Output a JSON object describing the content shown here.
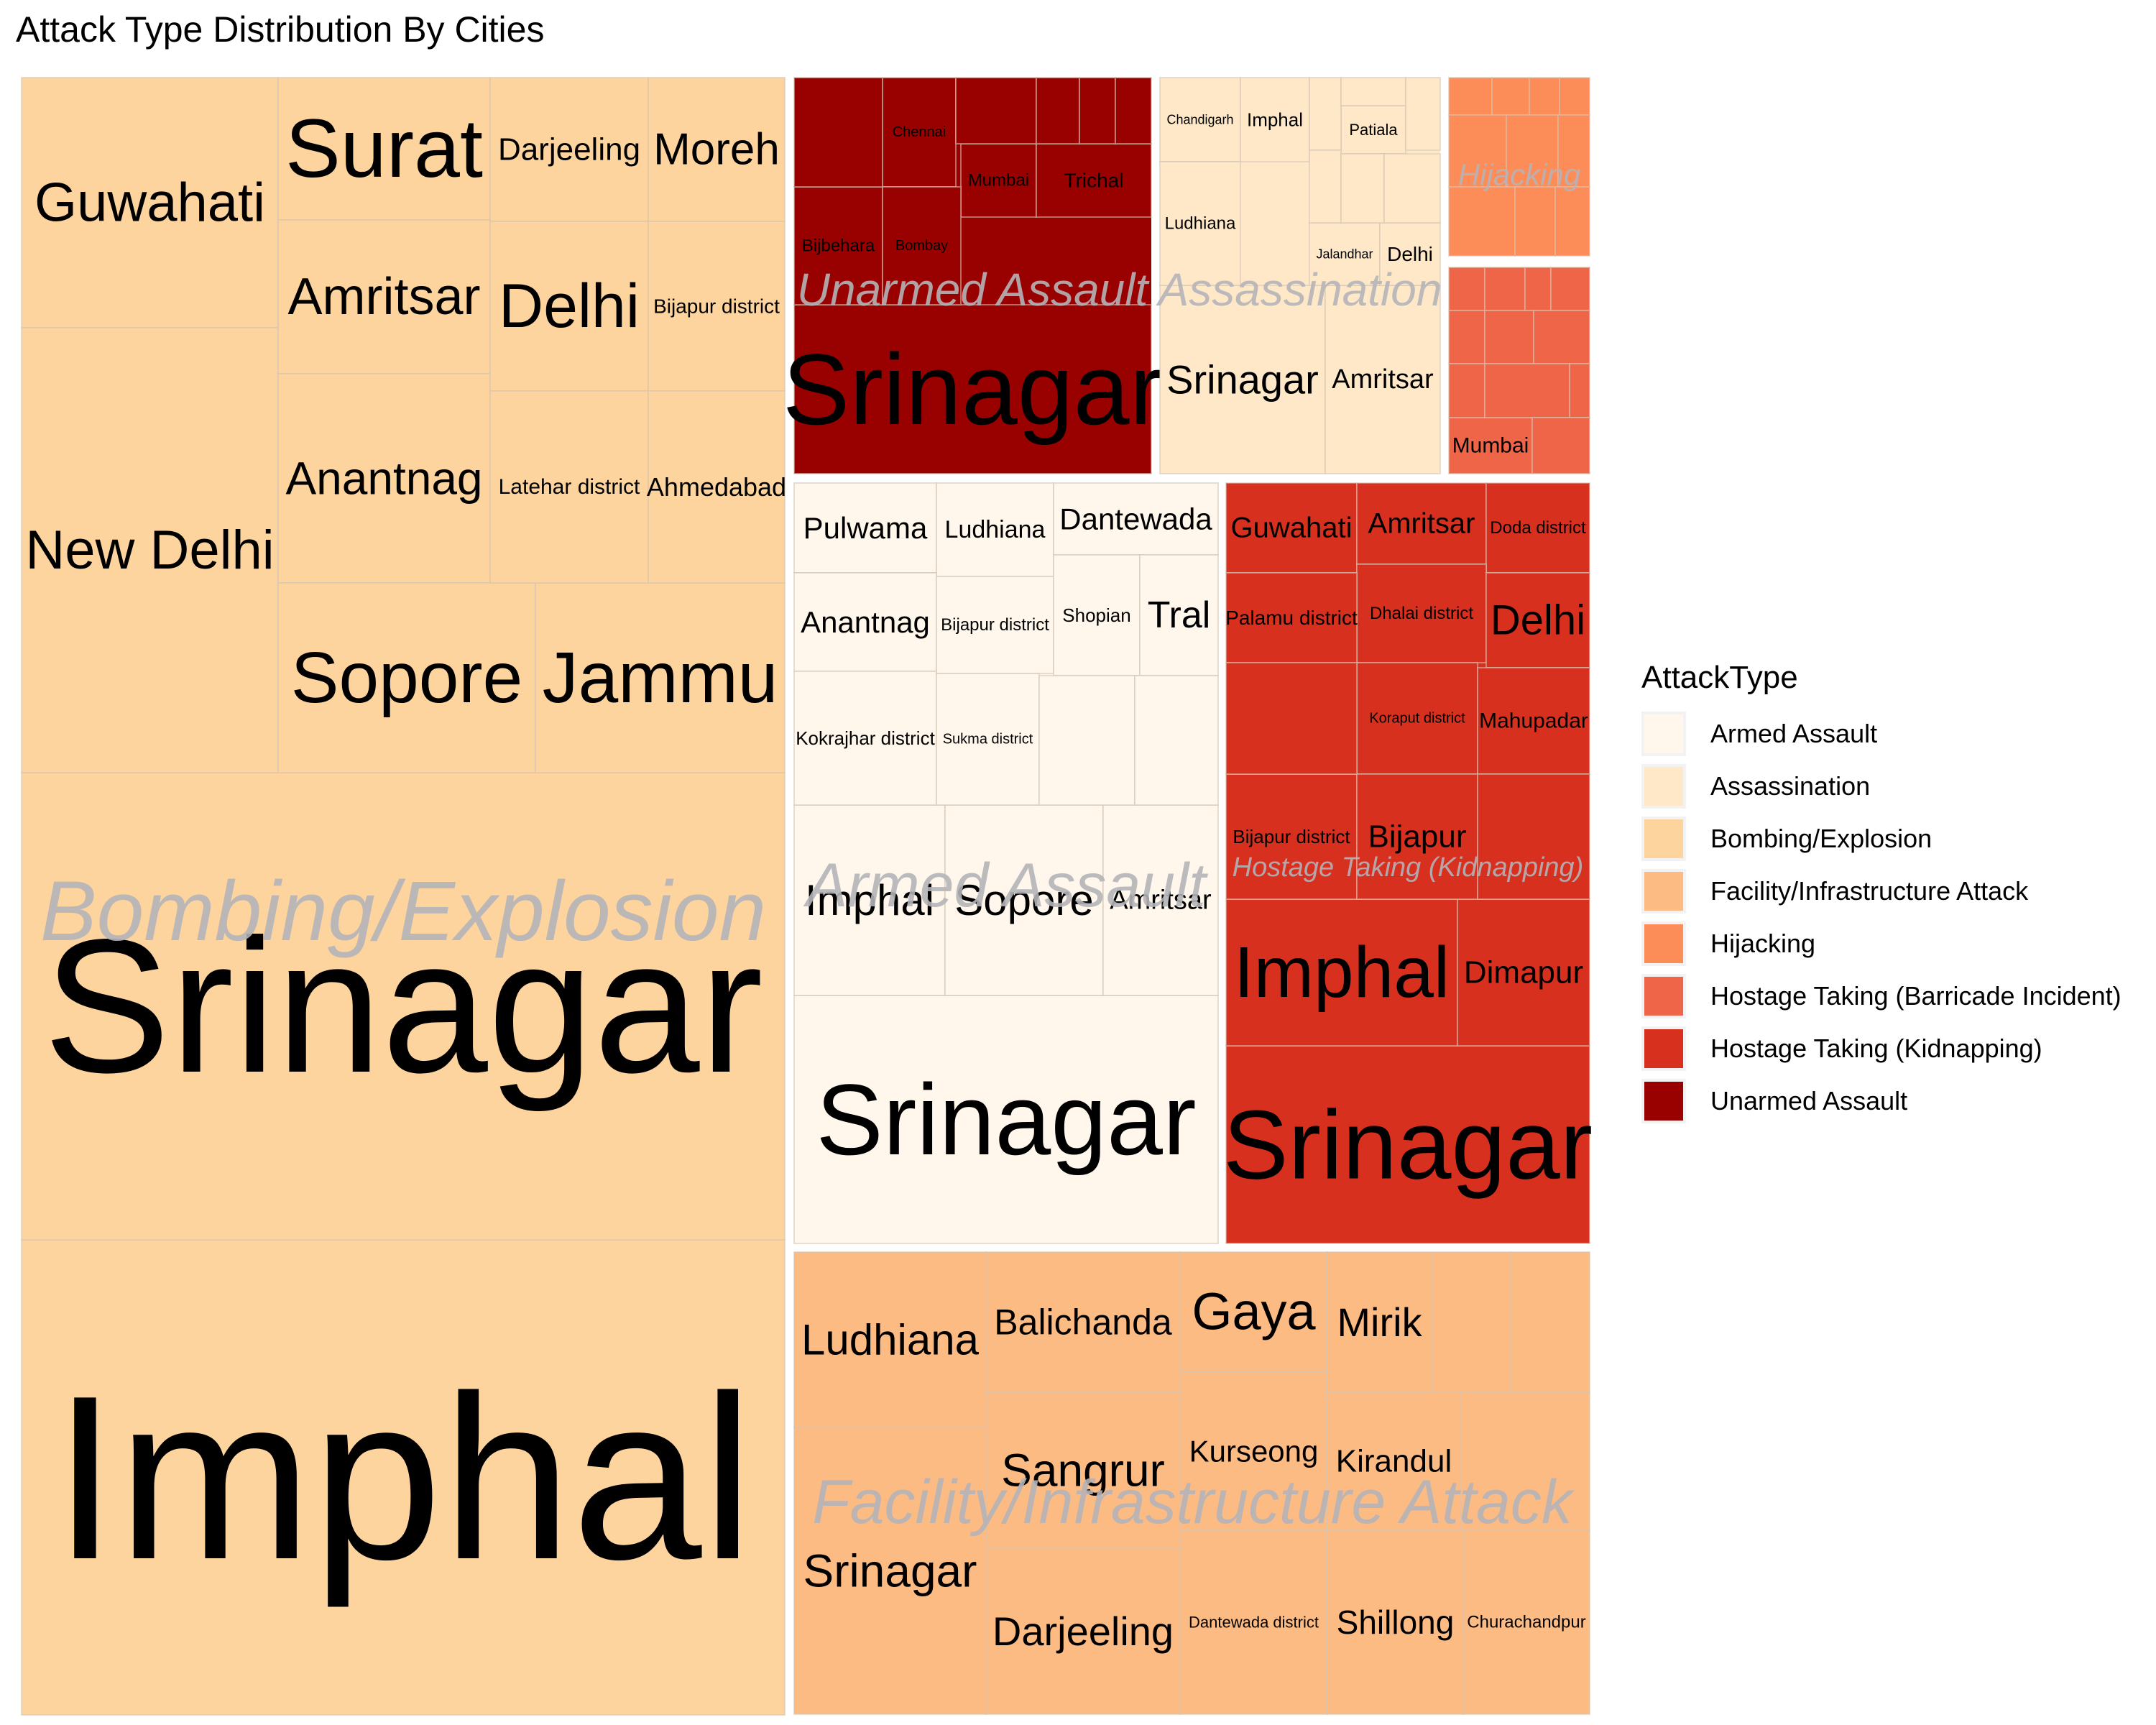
{
  "chart_data": {
    "type": "treemap",
    "title": "Attack Type Distribution By Cities",
    "legend": {
      "title": "AttackType",
      "position": "right",
      "items": [
        {
          "label": "Armed Assault",
          "color": "#fff7ec"
        },
        {
          "label": "Assassination",
          "color": "#fee8c8"
        },
        {
          "label": "Bombing/Explosion",
          "color": "#fdd49e"
        },
        {
          "label": "Facility/Infrastructure Attack",
          "color": "#fdbb84"
        },
        {
          "label": "Hijacking",
          "color": "#fc8d59"
        },
        {
          "label": "Hostage Taking (Barricade Incident)",
          "color": "#ef6548"
        },
        {
          "label": "Hostage Taking (Kidnapping)",
          "color": "#d7301f"
        },
        {
          "label": "Unarmed Assault",
          "color": "#990000"
        }
      ]
    },
    "groups": [
      {
        "name": "Bombing/Explosion",
        "label": "Bombing/Explosion",
        "color": "#fdd49e",
        "cities": [
          "Imphal",
          "Srinagar",
          "Guwahati",
          "New Delhi",
          "Surat",
          "Amritsar",
          "Anantnag",
          "Sopore",
          "Jammu",
          "Darjeeling",
          "Moreh",
          "Delhi",
          "Bijapur district",
          "Latehar district",
          "Ahmedabad"
        ]
      },
      {
        "name": "Armed Assault",
        "label": "Armed Assault",
        "color": "#fff7ec",
        "cities": [
          "Srinagar",
          "Imphal",
          "Sopore",
          "Amritsar",
          "Pulwama",
          "Ludhiana",
          "Dantewada",
          "Anantnag",
          "Bijapur district",
          "Shopian",
          "Tral",
          "Kokrajhar district",
          "Sukma district"
        ]
      },
      {
        "name": "Facility/Infrastructure Attack",
        "label": "Facility/Infrastructure Attack",
        "color": "#fdbb84",
        "cities": [
          "Ludhiana",
          "Srinagar",
          "Balichanda",
          "Sangrur",
          "Darjeeling",
          "Gaya",
          "Kurseong",
          "Dantewada district",
          "Mirik",
          "Kirandul",
          "Shillong",
          "Churachandpur"
        ]
      },
      {
        "name": "Hostage Taking (Kidnapping)",
        "label": "Hostage Taking (Kidnapping)",
        "color": "#d7301f",
        "cities": [
          "Srinagar",
          "Imphal",
          "Dimapur",
          "Guwahati",
          "Amritsar",
          "Doda district",
          "Dhalai district",
          "Palamu district",
          "Delhi",
          "Koraput district",
          "Mahupadar",
          "Bijapur district",
          "Bijapur"
        ]
      },
      {
        "name": "Unarmed Assault",
        "label": "Unarmed Assault",
        "color": "#990000",
        "cities": [
          "Srinagar",
          "Chennai",
          "Mumbai",
          "Trichal",
          "Bijbehara",
          "Bombay"
        ]
      },
      {
        "name": "Assassination",
        "label": "Assassination",
        "color": "#fee8c8",
        "cities": [
          "Srinagar",
          "Amritsar",
          "Chandigarh",
          "Imphal",
          "Patiala",
          "Ludhiana",
          "Jalandhar",
          "Delhi"
        ]
      },
      {
        "name": "Hijacking",
        "label": "Hijacking",
        "color": "#fc8d59",
        "cities": []
      },
      {
        "name": "Hostage Taking (Barricade Incident)",
        "label": "",
        "color": "#ef6548",
        "cities": [
          "Mumbai"
        ]
      }
    ]
  }
}
